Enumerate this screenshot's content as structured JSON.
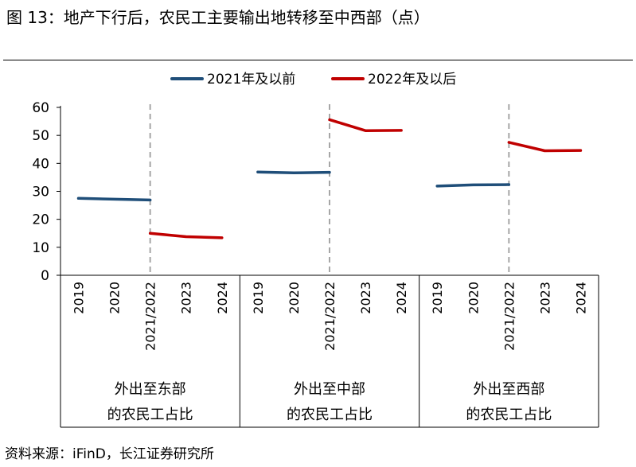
{
  "figure": {
    "title": "图 13：地产下行后，农民工主要输出地转移至中西部（点）",
    "source": "资料来源：iFinD，长江证券研究所"
  },
  "chart_data": {
    "type": "line",
    "ylim": [
      0,
      60
    ],
    "yticks": [
      0,
      10,
      20,
      30,
      40,
      50,
      60
    ],
    "legend_position": "top",
    "grid": false,
    "x_labels": [
      "2019",
      "2020",
      "2021/2022",
      "2023",
      "2024"
    ],
    "groups": [
      {
        "label_line1": "外出至东部",
        "label_line2": "的农民工占比"
      },
      {
        "label_line1": "外出至中部",
        "label_line2": "的农民工占比"
      },
      {
        "label_line1": "外出至西部",
        "label_line2": "的农民工占比"
      }
    ],
    "series": [
      {
        "name": "2021年及以前",
        "color": "#1f4e79",
        "segments": [
          {
            "group": 0,
            "x": [
              "2019",
              "2020",
              "2021"
            ],
            "values": [
              27.5,
              27.2,
              26.9
            ]
          },
          {
            "group": 1,
            "x": [
              "2019",
              "2020",
              "2021"
            ],
            "values": [
              36.9,
              36.6,
              36.8
            ]
          },
          {
            "group": 2,
            "x": [
              "2019",
              "2020",
              "2021"
            ],
            "values": [
              31.9,
              32.3,
              32.4
            ]
          }
        ]
      },
      {
        "name": "2022年及以后",
        "color": "#c00000",
        "segments": [
          {
            "group": 0,
            "x": [
              "2022",
              "2023",
              "2024"
            ],
            "values": [
              15.0,
              13.8,
              13.4
            ]
          },
          {
            "group": 1,
            "x": [
              "2022",
              "2023",
              "2024"
            ],
            "values": [
              55.6,
              51.7,
              51.8
            ]
          },
          {
            "group": 2,
            "x": [
              "2022",
              "2023",
              "2024"
            ],
            "values": [
              47.5,
              44.5,
              44.6
            ]
          }
        ]
      }
    ]
  }
}
